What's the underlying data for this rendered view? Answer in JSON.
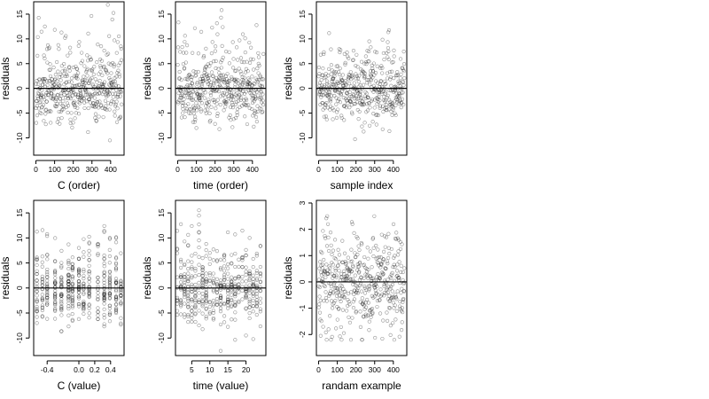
{
  "chart_data": [
    {
      "id": "p1",
      "type": "scatter",
      "xlabel": "C (order)",
      "ylabel": "residuals",
      "xlim": [
        -12,
        472
      ],
      "ylim": [
        -13.5,
        17.5
      ],
      "xticks": [
        0,
        100,
        200,
        300,
        400
      ],
      "xtick_labels": [
        "0",
        "100",
        "200",
        "300",
        "400"
      ],
      "yticks": [
        -10,
        -5,
        0,
        5,
        10,
        15
      ],
      "ytick_labels": [
        "-10",
        "-5",
        "0",
        "5",
        "10",
        "15"
      ],
      "hline": 0,
      "n_points": 460,
      "x_mode": "index",
      "noise": "mixed",
      "seed": 11
    },
    {
      "id": "p2",
      "type": "scatter",
      "xlabel": "time (order)",
      "ylabel": "residuals",
      "xlim": [
        -12,
        472
      ],
      "ylim": [
        -13.5,
        17.5
      ],
      "xticks": [
        0,
        100,
        200,
        300,
        400
      ],
      "xtick_labels": [
        "0",
        "100",
        "200",
        "300",
        "400"
      ],
      "yticks": [
        -10,
        -5,
        0,
        5,
        10,
        15
      ],
      "ytick_labels": [
        "-10",
        "-5",
        "0",
        "5",
        "10",
        "15"
      ],
      "hline": 0,
      "n_points": 460,
      "x_mode": "index",
      "noise": "mixed",
      "seed": 23
    },
    {
      "id": "p3",
      "type": "scatter",
      "xlabel": "sample index",
      "ylabel": "residuals",
      "xlim": [
        -12,
        472
      ],
      "ylim": [
        -13.5,
        17.5
      ],
      "xticks": [
        0,
        100,
        200,
        300,
        400
      ],
      "xtick_labels": [
        "0",
        "100",
        "200",
        "300",
        "400"
      ],
      "yticks": [
        -10,
        -5,
        0,
        5,
        10,
        15
      ],
      "ytick_labels": [
        "-10",
        "-5",
        "0",
        "5",
        "10",
        "15"
      ],
      "hline": 0,
      "n_points": 460,
      "x_mode": "index",
      "noise": "mixed",
      "seed": 37
    },
    {
      "id": "p4",
      "type": "scatter",
      "xlabel": "C (value)",
      "ylabel": "residuals",
      "xlim": [
        -0.57,
        0.57
      ],
      "ylim": [
        -13.5,
        17.5
      ],
      "xticks": [
        -0.4,
        0.0,
        0.2,
        0.4
      ],
      "xtick_labels": [
        "-0.4",
        "0.0",
        "0.2",
        "0.4"
      ],
      "yticks": [
        -10,
        -5,
        0,
        5,
        10,
        15
      ],
      "ytick_labels": [
        "-10",
        "-5",
        "0",
        "5",
        "10",
        "15"
      ],
      "hline": 0,
      "n_points": 460,
      "x_mode": "discrete",
      "x_levels": [
        -0.53,
        -0.46,
        -0.4,
        -0.3,
        -0.22,
        -0.13,
        -0.08,
        0.0,
        0.06,
        0.13,
        0.24,
        0.32,
        0.39,
        0.47,
        0.53
      ],
      "noise": "mixed",
      "seed": 41
    },
    {
      "id": "p5",
      "type": "scatter",
      "xlabel": "time (value)",
      "ylabel": "residuals",
      "xlim": [
        0.5,
        25.5
      ],
      "ylim": [
        -13.5,
        17.5
      ],
      "xticks": [
        5,
        10,
        15,
        20
      ],
      "xtick_labels": [
        "5",
        "10",
        "15",
        "20"
      ],
      "yticks": [
        -10,
        -5,
        0,
        5,
        10,
        15
      ],
      "ytick_labels": [
        "-10",
        "-5",
        "0",
        "5",
        "10",
        "15"
      ],
      "hline": 0,
      "n_points": 460,
      "x_mode": "discrete",
      "x_levels": [
        1,
        2,
        3,
        4,
        5,
        6,
        7,
        8,
        9,
        10,
        11,
        12,
        13,
        14,
        15,
        16,
        17,
        18,
        19,
        20,
        21,
        22,
        23,
        24
      ],
      "noise": "mixed",
      "seed": 53
    },
    {
      "id": "p6",
      "type": "scatter",
      "xlabel": "randam example",
      "ylabel": "residuals",
      "xlim": [
        -12,
        472
      ],
      "ylim": [
        -2.8,
        3.1
      ],
      "xticks": [
        0,
        100,
        200,
        300,
        400
      ],
      "xtick_labels": [
        "0",
        "100",
        "200",
        "300",
        "400"
      ],
      "yticks": [
        -2,
        -1,
        0,
        1,
        2,
        3
      ],
      "ytick_labels": [
        "-2",
        "-1",
        "0",
        "1",
        "2",
        "3"
      ],
      "hline": 0,
      "n_points": 460,
      "x_mode": "index",
      "noise": "normal",
      "seed": 67
    }
  ]
}
